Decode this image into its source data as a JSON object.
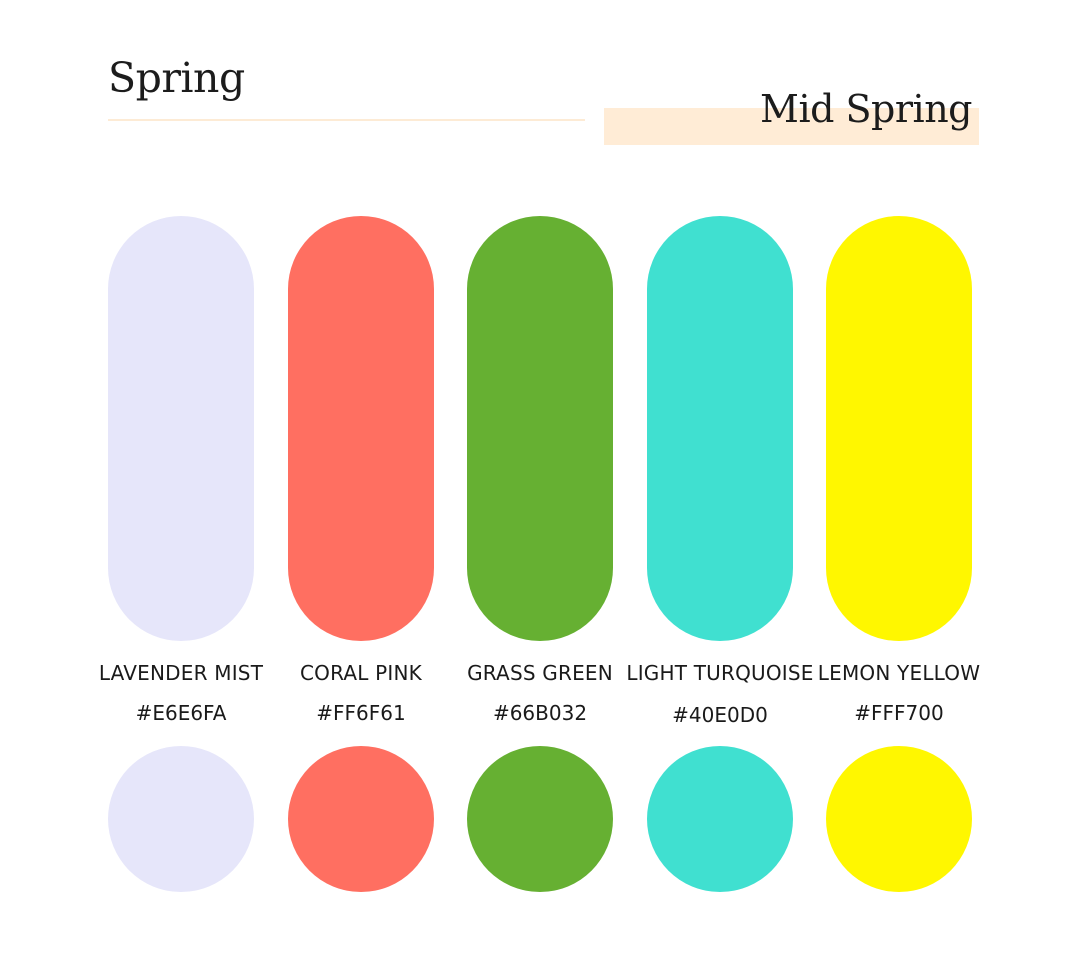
{
  "header": {
    "title": "Spring",
    "subtitle": "Mid Spring"
  },
  "colors": {
    "title_underline": "#fdebd5",
    "subtitle_highlight": "#ffecd6"
  },
  "swatches": [
    {
      "name": "LAVENDER MIST",
      "hex": "#E6E6FA",
      "color": "#E6E6FA"
    },
    {
      "name": "CORAL PINK",
      "hex": "#FF6F61",
      "color": "#FF6F61"
    },
    {
      "name": "GRASS GREEN",
      "hex": "#66B032",
      "color": "#66B032"
    },
    {
      "name": "LIGHT TURQUOISE",
      "hex": "#40E0D0",
      "color": "#40E0D0"
    },
    {
      "name": "LEMON YELLOW",
      "hex": "#FFF700",
      "color": "#FFF700"
    }
  ]
}
